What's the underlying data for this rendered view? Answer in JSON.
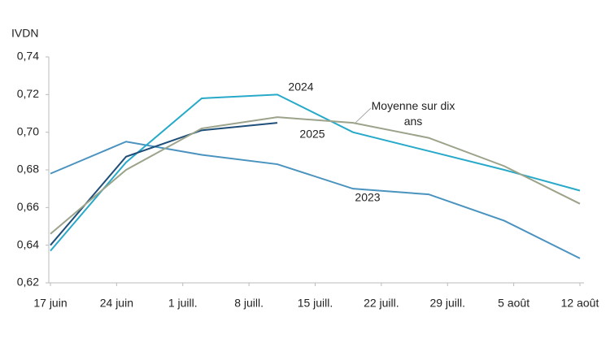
{
  "chart_data": {
    "type": "line",
    "y_axis_label": "IVDN",
    "x": [
      0,
      8,
      16,
      24,
      32,
      40,
      48,
      56
    ],
    "xlim": [
      0,
      56
    ],
    "xticks": [
      {
        "value": 0,
        "label": "17 juin"
      },
      {
        "value": 7,
        "label": "24 juin"
      },
      {
        "value": 14,
        "label": "1 juill."
      },
      {
        "value": 21,
        "label": "8 juill."
      },
      {
        "value": 28,
        "label": "15 juill."
      },
      {
        "value": 35,
        "label": "22 juill."
      },
      {
        "value": 42,
        "label": "29 juill."
      },
      {
        "value": 49,
        "label": "5 août"
      },
      {
        "value": 56,
        "label": "12 août"
      }
    ],
    "ylim": [
      0.62,
      0.74
    ],
    "yticks": [
      {
        "value": 0.62,
        "label": "0,62"
      },
      {
        "value": 0.64,
        "label": "0,64"
      },
      {
        "value": 0.66,
        "label": "0,66"
      },
      {
        "value": 0.68,
        "label": "0,68"
      },
      {
        "value": 0.7,
        "label": "0,70"
      },
      {
        "value": 0.72,
        "label": "0,72"
      },
      {
        "value": 0.74,
        "label": "0,74"
      }
    ],
    "grid": false,
    "series": [
      {
        "name": "2023",
        "color": "#4a93bf",
        "values": [
          0.678,
          0.695,
          0.688,
          0.683,
          0.67,
          0.667,
          0.653,
          0.633
        ]
      },
      {
        "name": "2024",
        "color": "#27a9c9",
        "values": [
          0.637,
          0.684,
          0.718,
          0.72,
          0.7,
          0.69,
          0.68,
          0.669
        ]
      },
      {
        "name": "2025",
        "color": "#1f4e79",
        "values": [
          0.64,
          0.687,
          0.701,
          0.705,
          null,
          null,
          null,
          null
        ]
      },
      {
        "name": "Moyenne sur dix ans",
        "color": "#9ba38a",
        "values": [
          0.646,
          0.68,
          0.702,
          0.708,
          0.705,
          0.697,
          0.682,
          0.662
        ]
      }
    ]
  }
}
